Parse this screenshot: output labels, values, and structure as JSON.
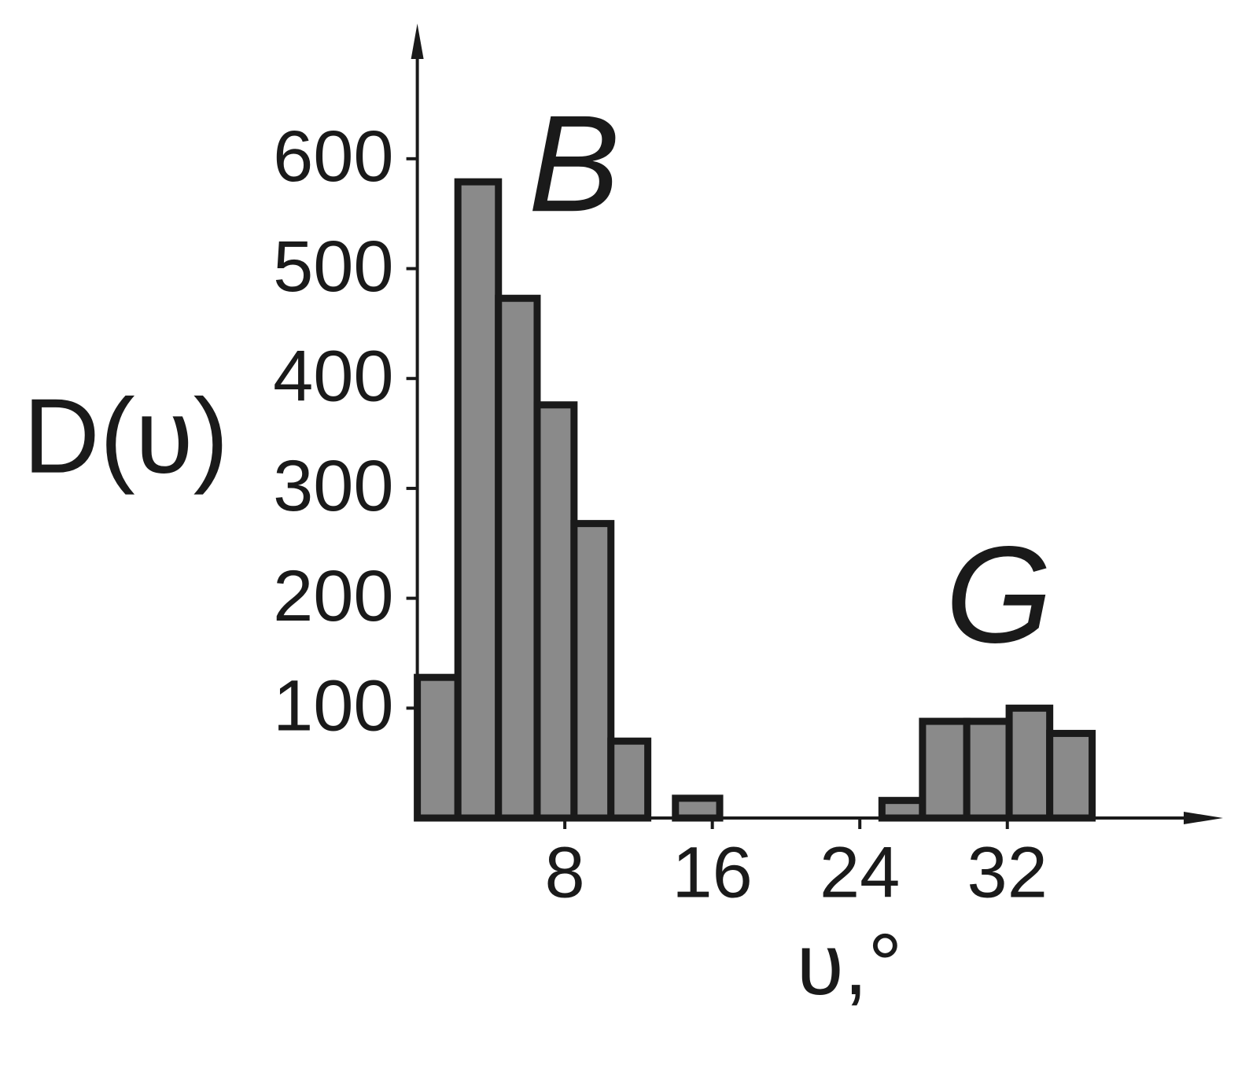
{
  "chart_data": {
    "type": "histogram",
    "bins": [
      0,
      2.2,
      4.4,
      6.5,
      8.5,
      10.5,
      12.5,
      14,
      16.4,
      25.2,
      27.4,
      29.8,
      32.1,
      34.3,
      36.6
    ],
    "values": [
      128,
      579,
      473,
      376,
      268,
      70,
      0,
      18,
      0,
      16,
      88,
      88,
      100,
      77
    ],
    "color": "#8a8a8a",
    "edge_color": "#1a1a1a",
    "xlim": [
      0,
      43.7
    ],
    "ylim": [
      0,
      723
    ],
    "xticks": [
      8,
      16,
      24,
      32
    ],
    "yticks": [
      100,
      200,
      300,
      400,
      500,
      600
    ],
    "xlabel": "υ,°",
    "ylabel": "D(υ)",
    "annotations": [
      "B",
      "G"
    ]
  }
}
